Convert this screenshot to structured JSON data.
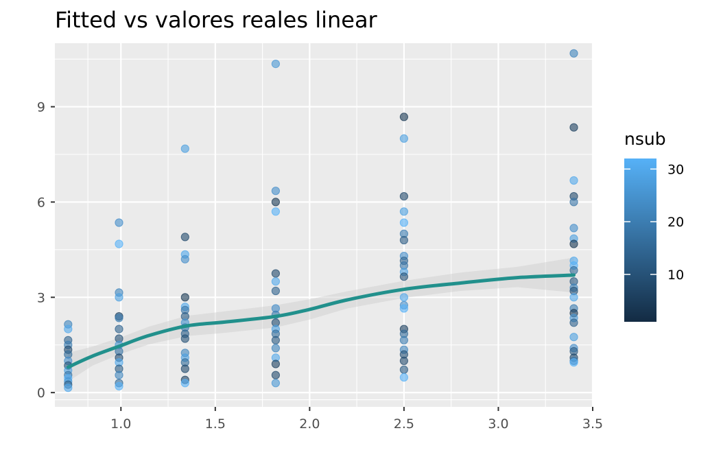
{
  "chart_data": {
    "type": "scatter",
    "title": "Fitted vs valores reales linear",
    "xlabel": "",
    "ylabel": "",
    "xlim": [
      0.65,
      3.5
    ],
    "ylim": [
      -0.45,
      11.0
    ],
    "x_ticks": [
      1.0,
      1.5,
      2.0,
      2.5,
      3.0,
      3.5
    ],
    "x_tick_labels": [
      "1.0",
      "1.5",
      "2.0",
      "2.5",
      "3.0",
      "3.5"
    ],
    "y_ticks": [
      0,
      3,
      6,
      9
    ],
    "y_tick_labels": [
      "0",
      "3",
      "6",
      "9"
    ],
    "grid": true,
    "panel_background": "#ebebeb",
    "color_scale": {
      "title": "nsub",
      "low_color": "#132b43",
      "high_color": "#56b1f7",
      "range": [
        1,
        32
      ],
      "ticks": [
        10,
        20,
        30
      ],
      "tick_labels": [
        "10",
        "20",
        "30"
      ],
      "legend_position": "right"
    },
    "smooth": {
      "color": "#21908c",
      "band_color": "#cccccc",
      "x": [
        0.72,
        0.85,
        1.0,
        1.15,
        1.35,
        1.55,
        1.82,
        2.0,
        2.2,
        2.5,
        2.8,
        3.1,
        3.4
      ],
      "y": [
        0.8,
        1.15,
        1.48,
        1.8,
        2.1,
        2.22,
        2.4,
        2.62,
        2.92,
        3.25,
        3.45,
        3.62,
        3.7
      ],
      "lower": [
        0.35,
        0.85,
        1.22,
        1.52,
        1.78,
        1.88,
        2.05,
        2.3,
        2.65,
        2.98,
        3.2,
        3.32,
        3.15
      ],
      "upper": [
        1.25,
        1.45,
        1.74,
        2.08,
        2.42,
        2.56,
        2.75,
        2.94,
        3.19,
        3.52,
        3.78,
        3.96,
        4.25
      ]
    },
    "points": [
      {
        "x": 0.72,
        "y": 2.15,
        "nsub": 22
      },
      {
        "x": 0.72,
        "y": 2.0,
        "nsub": 30
      },
      {
        "x": 0.72,
        "y": 1.65,
        "nsub": 14
      },
      {
        "x": 0.72,
        "y": 1.5,
        "nsub": 20
      },
      {
        "x": 0.72,
        "y": 1.35,
        "nsub": 8
      },
      {
        "x": 0.72,
        "y": 1.2,
        "nsub": 16
      },
      {
        "x": 0.72,
        "y": 1.0,
        "nsub": 24
      },
      {
        "x": 0.72,
        "y": 0.85,
        "nsub": 10
      },
      {
        "x": 0.72,
        "y": 0.7,
        "nsub": 28
      },
      {
        "x": 0.72,
        "y": 0.55,
        "nsub": 18
      },
      {
        "x": 0.72,
        "y": 0.45,
        "nsub": 32
      },
      {
        "x": 0.72,
        "y": 0.35,
        "nsub": 26
      },
      {
        "x": 0.72,
        "y": 0.25,
        "nsub": 12
      },
      {
        "x": 0.72,
        "y": 0.15,
        "nsub": 30
      },
      {
        "x": 0.99,
        "y": 5.35,
        "nsub": 24
      },
      {
        "x": 0.99,
        "y": 4.68,
        "nsub": 32
      },
      {
        "x": 0.99,
        "y": 3.15,
        "nsub": 22
      },
      {
        "x": 0.99,
        "y": 3.0,
        "nsub": 28
      },
      {
        "x": 0.99,
        "y": 2.4,
        "nsub": 6
      },
      {
        "x": 0.99,
        "y": 2.35,
        "nsub": 20
      },
      {
        "x": 0.99,
        "y": 2.0,
        "nsub": 14
      },
      {
        "x": 0.99,
        "y": 1.7,
        "nsub": 10
      },
      {
        "x": 0.99,
        "y": 1.5,
        "nsub": 26
      },
      {
        "x": 0.99,
        "y": 1.3,
        "nsub": 18
      },
      {
        "x": 0.99,
        "y": 1.1,
        "nsub": 8
      },
      {
        "x": 0.99,
        "y": 0.95,
        "nsub": 30
      },
      {
        "x": 0.99,
        "y": 0.75,
        "nsub": 12
      },
      {
        "x": 0.99,
        "y": 0.55,
        "nsub": 22
      },
      {
        "x": 0.99,
        "y": 0.3,
        "nsub": 16
      },
      {
        "x": 0.99,
        "y": 0.2,
        "nsub": 32
      },
      {
        "x": 1.34,
        "y": 7.68,
        "nsub": 28
      },
      {
        "x": 1.34,
        "y": 4.9,
        "nsub": 8
      },
      {
        "x": 1.34,
        "y": 4.35,
        "nsub": 30
      },
      {
        "x": 1.34,
        "y": 4.2,
        "nsub": 24
      },
      {
        "x": 1.34,
        "y": 3.0,
        "nsub": 4
      },
      {
        "x": 1.34,
        "y": 2.7,
        "nsub": 30
      },
      {
        "x": 1.34,
        "y": 2.6,
        "nsub": 18
      },
      {
        "x": 1.34,
        "y": 2.4,
        "nsub": 12
      },
      {
        "x": 1.34,
        "y": 2.2,
        "nsub": 26
      },
      {
        "x": 1.34,
        "y": 2.05,
        "nsub": 20
      },
      {
        "x": 1.34,
        "y": 1.85,
        "nsub": 14
      },
      {
        "x": 1.34,
        "y": 1.7,
        "nsub": 10
      },
      {
        "x": 1.34,
        "y": 1.25,
        "nsub": 22
      },
      {
        "x": 1.34,
        "y": 1.1,
        "nsub": 28
      },
      {
        "x": 1.34,
        "y": 0.95,
        "nsub": 16
      },
      {
        "x": 1.34,
        "y": 0.75,
        "nsub": 8
      },
      {
        "x": 1.34,
        "y": 0.4,
        "nsub": 6
      },
      {
        "x": 1.34,
        "y": 0.3,
        "nsub": 32
      },
      {
        "x": 1.82,
        "y": 10.35,
        "nsub": 26
      },
      {
        "x": 1.82,
        "y": 6.35,
        "nsub": 24
      },
      {
        "x": 1.82,
        "y": 6.0,
        "nsub": 4
      },
      {
        "x": 1.82,
        "y": 5.7,
        "nsub": 32
      },
      {
        "x": 1.82,
        "y": 3.75,
        "nsub": 8
      },
      {
        "x": 1.82,
        "y": 3.5,
        "nsub": 30
      },
      {
        "x": 1.82,
        "y": 3.2,
        "nsub": 14
      },
      {
        "x": 1.82,
        "y": 2.65,
        "nsub": 24
      },
      {
        "x": 1.82,
        "y": 2.45,
        "nsub": 20
      },
      {
        "x": 1.82,
        "y": 2.2,
        "nsub": 10
      },
      {
        "x": 1.82,
        "y": 2.0,
        "nsub": 28
      },
      {
        "x": 1.82,
        "y": 1.85,
        "nsub": 16
      },
      {
        "x": 1.82,
        "y": 1.65,
        "nsub": 12
      },
      {
        "x": 1.82,
        "y": 1.4,
        "nsub": 22
      },
      {
        "x": 1.82,
        "y": 1.1,
        "nsub": 30
      },
      {
        "x": 1.82,
        "y": 0.9,
        "nsub": 6
      },
      {
        "x": 1.82,
        "y": 0.55,
        "nsub": 8
      },
      {
        "x": 1.82,
        "y": 0.3,
        "nsub": 26
      },
      {
        "x": 2.5,
        "y": 8.68,
        "nsub": 4
      },
      {
        "x": 2.5,
        "y": 8.0,
        "nsub": 28
      },
      {
        "x": 2.5,
        "y": 6.18,
        "nsub": 8
      },
      {
        "x": 2.5,
        "y": 5.7,
        "nsub": 28
      },
      {
        "x": 2.5,
        "y": 5.35,
        "nsub": 32
      },
      {
        "x": 2.5,
        "y": 5.0,
        "nsub": 20
      },
      {
        "x": 2.5,
        "y": 4.8,
        "nsub": 12
      },
      {
        "x": 2.5,
        "y": 4.3,
        "nsub": 24
      },
      {
        "x": 2.5,
        "y": 4.15,
        "nsub": 14
      },
      {
        "x": 2.5,
        "y": 4.0,
        "nsub": 18
      },
      {
        "x": 2.5,
        "y": 3.8,
        "nsub": 28
      },
      {
        "x": 2.5,
        "y": 3.65,
        "nsub": 10
      },
      {
        "x": 2.5,
        "y": 3.0,
        "nsub": 30
      },
      {
        "x": 2.5,
        "y": 2.75,
        "nsub": 24
      },
      {
        "x": 2.5,
        "y": 2.65,
        "nsub": 32
      },
      {
        "x": 2.5,
        "y": 2.0,
        "nsub": 6
      },
      {
        "x": 2.5,
        "y": 1.85,
        "nsub": 16
      },
      {
        "x": 2.5,
        "y": 1.65,
        "nsub": 20
      },
      {
        "x": 2.5,
        "y": 1.35,
        "nsub": 22
      },
      {
        "x": 2.5,
        "y": 1.2,
        "nsub": 10
      },
      {
        "x": 2.5,
        "y": 1.0,
        "nsub": 8
      },
      {
        "x": 2.5,
        "y": 0.72,
        "nsub": 12
      },
      {
        "x": 2.5,
        "y": 0.48,
        "nsub": 32
      },
      {
        "x": 3.4,
        "y": 10.68,
        "nsub": 22
      },
      {
        "x": 3.4,
        "y": 8.35,
        "nsub": 6
      },
      {
        "x": 3.4,
        "y": 6.68,
        "nsub": 30
      },
      {
        "x": 3.4,
        "y": 6.18,
        "nsub": 8
      },
      {
        "x": 3.4,
        "y": 6.0,
        "nsub": 18
      },
      {
        "x": 3.4,
        "y": 5.18,
        "nsub": 24
      },
      {
        "x": 3.4,
        "y": 4.85,
        "nsub": 28
      },
      {
        "x": 3.4,
        "y": 4.68,
        "nsub": 4
      },
      {
        "x": 3.4,
        "y": 4.15,
        "nsub": 30
      },
      {
        "x": 3.4,
        "y": 4.0,
        "nsub": 32
      },
      {
        "x": 3.4,
        "y": 3.85,
        "nsub": 16
      },
      {
        "x": 3.4,
        "y": 3.5,
        "nsub": 12
      },
      {
        "x": 3.4,
        "y": 3.3,
        "nsub": 22
      },
      {
        "x": 3.4,
        "y": 3.2,
        "nsub": 10
      },
      {
        "x": 3.4,
        "y": 3.0,
        "nsub": 30
      },
      {
        "x": 3.4,
        "y": 2.65,
        "nsub": 20
      },
      {
        "x": 3.4,
        "y": 2.5,
        "nsub": 4
      },
      {
        "x": 3.4,
        "y": 2.35,
        "nsub": 26
      },
      {
        "x": 3.4,
        "y": 2.2,
        "nsub": 14
      },
      {
        "x": 3.4,
        "y": 1.75,
        "nsub": 28
      },
      {
        "x": 3.4,
        "y": 1.4,
        "nsub": 24
      },
      {
        "x": 3.4,
        "y": 1.3,
        "nsub": 12
      },
      {
        "x": 3.4,
        "y": 1.1,
        "nsub": 8
      },
      {
        "x": 3.4,
        "y": 1.0,
        "nsub": 18
      },
      {
        "x": 3.4,
        "y": 0.95,
        "nsub": 32
      }
    ]
  }
}
